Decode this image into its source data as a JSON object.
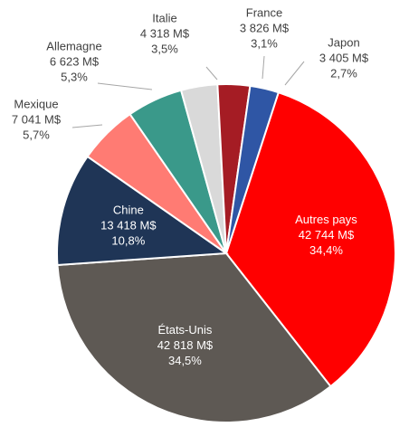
{
  "chart_data": {
    "type": "pie",
    "categories": [
      "Autres pays",
      "États-Unis",
      "Chine",
      "Mexique",
      "Allemagne",
      "Italie",
      "France",
      "Japon"
    ],
    "values": [
      42744,
      42818,
      13418,
      7041,
      6623,
      4318,
      3826,
      3405
    ],
    "value_labels": [
      "42 744 M$",
      "42 818 M$",
      "13 418 M$",
      "7 041 M$",
      "6 623 M$",
      "4 318 M$",
      "3 826 M$",
      "3 405 M$"
    ],
    "percent_labels": [
      "34,4%",
      "34,5%",
      "10,8%",
      "5,7%",
      "5,3%",
      "3,5%",
      "3,1%",
      "2,7%"
    ],
    "colors": [
      "#ff0000",
      "#5e5954",
      "#1f3556",
      "#ff7b73",
      "#3a998a",
      "#d9d9d9",
      "#a51c24",
      "#2f56a5"
    ]
  }
}
